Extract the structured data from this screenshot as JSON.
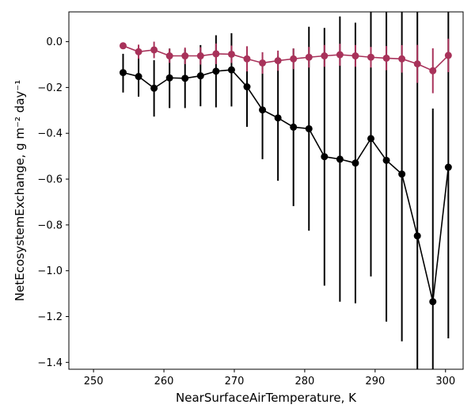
{
  "chart_data": {
    "type": "line",
    "xlabel": "NearSurfaceAirTemperature,  K",
    "ylabel": "NetEcosystemExchange,  g m⁻² day⁻¹",
    "xlim": [
      246.5,
      302.5
    ],
    "ylim": [
      -1.43,
      0.13
    ],
    "xticks": [
      250,
      260,
      270,
      280,
      290,
      300
    ],
    "xtick_labels": [
      "250",
      "260",
      "270",
      "280",
      "290",
      "300"
    ],
    "yticks": [
      0.0,
      -0.2,
      -0.4,
      -0.6,
      -0.8,
      -1.0,
      -1.2,
      -1.4
    ],
    "ytick_labels": [
      "0.0",
      "−0.2",
      "−0.4",
      "−0.6",
      "−0.8",
      "−1.0",
      "−1.2",
      "−1.4"
    ],
    "grid": false,
    "legend": "none",
    "series": [
      {
        "color": "#000000",
        "x": [
          254.2,
          256.4,
          258.6,
          260.8,
          263.0,
          265.2,
          267.4,
          269.6,
          271.8,
          274.0,
          276.2,
          278.4,
          280.6,
          282.8,
          285.0,
          287.2,
          289.4,
          291.6,
          293.8,
          296.0,
          298.2,
          300.4
        ],
        "y": [
          -0.135,
          -0.152,
          -0.203,
          -0.158,
          -0.16,
          -0.149,
          -0.129,
          -0.123,
          -0.197,
          -0.298,
          -0.333,
          -0.373,
          -0.38,
          -0.502,
          -0.513,
          -0.53,
          -0.423,
          -0.518,
          -0.578,
          -0.848,
          -1.135,
          -0.548
        ],
        "err_low": [
          -0.222,
          -0.24,
          -0.327,
          -0.29,
          -0.29,
          -0.282,
          -0.287,
          -0.283,
          -0.372,
          -0.513,
          -0.607,
          -0.718,
          -0.825,
          -1.065,
          -1.135,
          -1.142,
          -1.025,
          -1.222,
          -1.308,
          -1.43,
          -1.43,
          -1.295
        ],
        "err_high": [
          -0.053,
          -0.07,
          -0.081,
          -0.03,
          -0.033,
          -0.015,
          0.028,
          0.037,
          -0.022,
          -0.083,
          -0.063,
          -0.03,
          0.065,
          0.06,
          0.11,
          0.083,
          0.13,
          0.13,
          0.13,
          0.13,
          -0.292,
          0.13
        ]
      },
      {
        "color": "#a8325a",
        "x": [
          254.2,
          256.4,
          258.6,
          260.8,
          263.0,
          265.2,
          267.4,
          269.6,
          271.8,
          274.0,
          276.2,
          278.4,
          280.6,
          282.8,
          285.0,
          287.2,
          289.4,
          291.6,
          293.8,
          296.0,
          298.2,
          300.4
        ],
        "y": [
          -0.018,
          -0.044,
          -0.036,
          -0.062,
          -0.062,
          -0.062,
          -0.053,
          -0.055,
          -0.075,
          -0.093,
          -0.083,
          -0.075,
          -0.068,
          -0.062,
          -0.057,
          -0.062,
          -0.068,
          -0.072,
          -0.075,
          -0.097,
          -0.127,
          -0.06
        ],
        "err_low": [
          -0.03,
          -0.075,
          -0.072,
          -0.093,
          -0.098,
          -0.1,
          -0.098,
          -0.093,
          -0.13,
          -0.14,
          -0.127,
          -0.12,
          -0.113,
          -0.11,
          -0.105,
          -0.11,
          -0.113,
          -0.125,
          -0.135,
          -0.18,
          -0.225,
          -0.133
        ],
        "err_high": [
          -0.006,
          -0.013,
          0.0,
          -0.031,
          -0.026,
          -0.024,
          -0.008,
          -0.017,
          -0.02,
          -0.046,
          -0.039,
          -0.03,
          -0.023,
          -0.014,
          -0.009,
          -0.014,
          -0.023,
          -0.019,
          -0.015,
          -0.014,
          -0.029,
          0.013
        ]
      }
    ]
  }
}
